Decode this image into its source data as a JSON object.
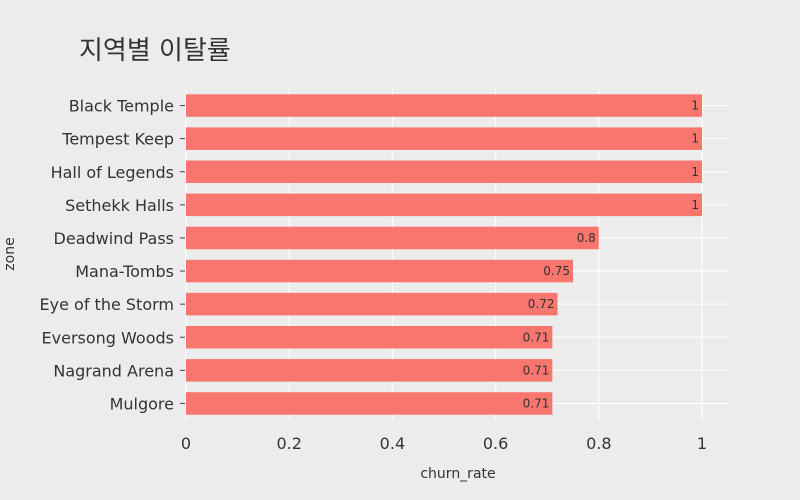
{
  "chart_data": {
    "type": "bar",
    "orientation": "horizontal",
    "title": "지역별 이탈률",
    "xlabel": "churn_rate",
    "ylabel": "zone",
    "xlim": [
      0,
      1.05
    ],
    "xticks": [
      0,
      0.2,
      0.4,
      0.6,
      0.8,
      1
    ],
    "xtick_labels": [
      "0",
      "0.2",
      "0.4",
      "0.6",
      "0.8",
      "1"
    ],
    "categories": [
      "Black Temple",
      "Tempest Keep",
      "Hall of Legends",
      "Sethekk Halls",
      "Deadwind Pass",
      "Mana-Tombs",
      "Eye of the Storm",
      "Eversong Woods",
      "Nagrand Arena",
      "Mulgore"
    ],
    "values": [
      1,
      1,
      1,
      1,
      0.8,
      0.75,
      0.72,
      0.71,
      0.71,
      0.71
    ],
    "value_labels": [
      "1",
      "1",
      "1",
      "1",
      "0.8",
      "0.75",
      "0.72",
      "0.71",
      "0.71",
      "0.71"
    ],
    "bar_color": "#f8766d",
    "background_color": "#ececec",
    "grid": true,
    "grid_axis": "x",
    "grid_color": "#ffffff"
  }
}
